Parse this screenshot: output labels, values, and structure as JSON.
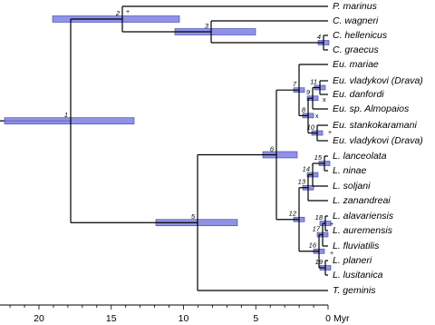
{
  "taxa": [
    "P. marinus",
    "C. wagneri",
    "C. hellenicus",
    "C. graecus",
    "Eu. mariae",
    "Eu. vladykovi (Drava)",
    "Eu. danfordi",
    "Eu. sp. Almopaios",
    "Eu. stankokaramani",
    "Eu. vladykovi (Drava)",
    "L. lanceolata",
    "L. ninae",
    "L. soljani",
    "L. zanandreai",
    "L. alavariensis",
    "L. auremensis",
    "L. fluviatilis",
    "L. planeri",
    "L. lusitanica",
    "T. geminis"
  ],
  "nodes": [
    "1",
    "2",
    "3",
    "4",
    "5",
    "6",
    "7",
    "8",
    "9",
    "10",
    "11",
    "12",
    "13",
    "14",
    "15",
    "16",
    "17",
    "18",
    "19"
  ],
  "markers": [
    "+",
    "x",
    "x",
    "+",
    "+",
    "+"
  ],
  "axis": {
    "ticks": [
      "20",
      "15",
      "10",
      "5",
      "0"
    ],
    "unit": "Myr"
  }
}
